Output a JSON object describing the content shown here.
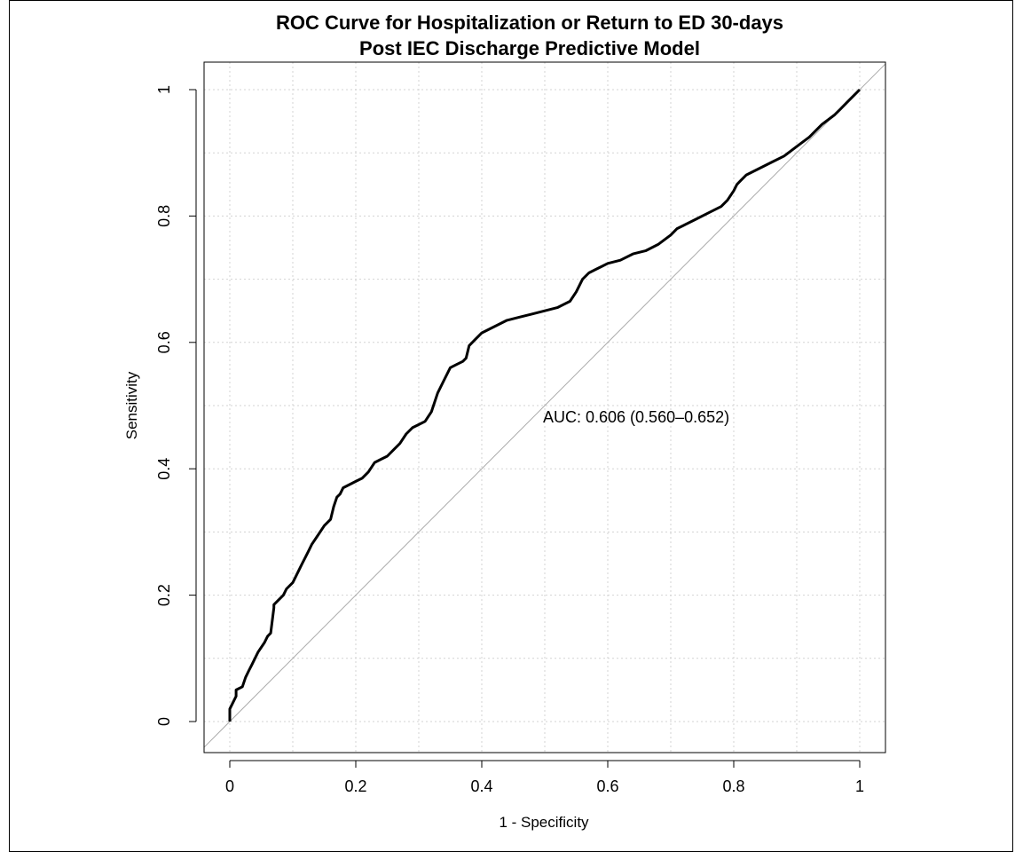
{
  "chart_data": {
    "type": "line",
    "title_lines": [
      "ROC Curve for Hospitalization or Return to ED 30-days",
      "Post IEC Discharge Predictive Model"
    ],
    "xlabel": "1 - Specificity",
    "ylabel": "Sensitivity",
    "xlim": [
      0,
      1
    ],
    "ylim": [
      0,
      1
    ],
    "x_ticks": [
      0,
      0.2,
      0.4,
      0.6,
      0.8,
      1
    ],
    "y_ticks": [
      0,
      0.2,
      0.4,
      0.6,
      0.8,
      1
    ],
    "x_tick_labels": [
      "0",
      "0.2",
      "0.4",
      "0.6",
      "0.8",
      "1"
    ],
    "y_tick_labels": [
      "0",
      "0.2",
      "0.4",
      "0.6",
      "0.8",
      "1"
    ],
    "grid": true,
    "annotation": "AUC: 0.606 (0.560–0.652)",
    "series": [
      {
        "x": [
          0,
          0,
          0.005,
          0.01,
          0.01,
          0.02,
          0.025,
          0.03,
          0.035,
          0.04,
          0.045,
          0.055,
          0.06,
          0.065,
          0.07,
          0.07,
          0.075,
          0.085,
          0.09,
          0.1,
          0.105,
          0.11,
          0.115,
          0.12,
          0.125,
          0.13,
          0.14,
          0.15,
          0.16,
          0.165,
          0.17,
          0.175,
          0.18,
          0.19,
          0.2,
          0.21,
          0.22,
          0.23,
          0.24,
          0.25,
          0.26,
          0.27,
          0.28,
          0.29,
          0.3,
          0.31,
          0.32,
          0.33,
          0.34,
          0.35,
          0.36,
          0.37,
          0.375,
          0.38,
          0.39,
          0.4,
          0.42,
          0.44,
          0.46,
          0.48,
          0.5,
          0.52,
          0.54,
          0.55,
          0.56,
          0.57,
          0.58,
          0.59,
          0.6,
          0.62,
          0.64,
          0.66,
          0.68,
          0.7,
          0.71,
          0.72,
          0.74,
          0.76,
          0.78,
          0.79,
          0.8,
          0.805,
          0.81,
          0.82,
          0.84,
          0.86,
          0.88,
          0.9,
          0.92,
          0.94,
          0.96,
          0.97,
          0.98,
          0.99,
          1
        ],
        "y": [
          0,
          0.02,
          0.03,
          0.04,
          0.05,
          0.055,
          0.07,
          0.08,
          0.09,
          0.1,
          0.11,
          0.125,
          0.135,
          0.14,
          0.18,
          0.185,
          0.19,
          0.2,
          0.21,
          0.22,
          0.23,
          0.24,
          0.25,
          0.26,
          0.27,
          0.28,
          0.295,
          0.31,
          0.32,
          0.34,
          0.355,
          0.36,
          0.37,
          0.375,
          0.38,
          0.385,
          0.395,
          0.41,
          0.415,
          0.42,
          0.43,
          0.44,
          0.455,
          0.465,
          0.47,
          0.475,
          0.49,
          0.52,
          0.54,
          0.56,
          0.565,
          0.57,
          0.575,
          0.595,
          0.605,
          0.615,
          0.625,
          0.635,
          0.64,
          0.645,
          0.65,
          0.655,
          0.665,
          0.68,
          0.7,
          0.71,
          0.715,
          0.72,
          0.725,
          0.73,
          0.74,
          0.745,
          0.755,
          0.77,
          0.78,
          0.785,
          0.795,
          0.805,
          0.815,
          0.825,
          0.84,
          0.85,
          0.855,
          0.865,
          0.875,
          0.885,
          0.895,
          0.91,
          0.925,
          0.945,
          0.96,
          0.97,
          0.98,
          0.99,
          1
        ]
      }
    ]
  }
}
